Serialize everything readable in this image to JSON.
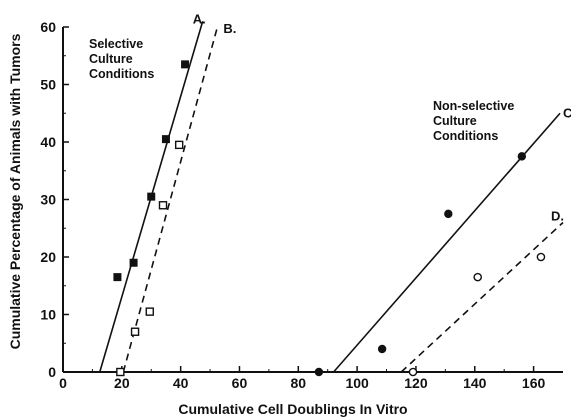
{
  "chart_data": {
    "type": "scatter",
    "xlabel": "Cumulative Cell Doublings In Vitro",
    "ylabel": "Cumulative Percentage of Animals with Tumors",
    "xlim": [
      0,
      170
    ],
    "ylim": [
      0,
      60
    ],
    "x_ticks": [
      0,
      20,
      40,
      60,
      80,
      100,
      120,
      140,
      160
    ],
    "y_ticks": [
      0,
      10,
      20,
      30,
      40,
      50,
      60
    ],
    "grid": false,
    "annotations": [
      {
        "id": "selective",
        "lines": [
          "Selective",
          "Culture",
          "Conditions"
        ]
      },
      {
        "id": "nonselective",
        "lines": [
          "Non-selective",
          "Culture",
          "Conditions"
        ]
      }
    ],
    "series": [
      {
        "name": "A.",
        "marker": "filled-square",
        "line_style": "solid",
        "points": [
          [
            18.5,
            16.5
          ],
          [
            24,
            19
          ],
          [
            30,
            30.5
          ],
          [
            35,
            40.5
          ],
          [
            41.5,
            53.5
          ]
        ],
        "fit": [
          [
            12.5,
            0
          ],
          [
            47.5,
            61
          ]
        ]
      },
      {
        "name": "B.",
        "marker": "open-square",
        "line_style": "dashed",
        "points": [
          [
            19.5,
            0
          ],
          [
            24.5,
            7
          ],
          [
            29.5,
            10.5
          ],
          [
            34,
            29
          ],
          [
            39.5,
            39.5
          ]
        ],
        "fit": [
          [
            20.5,
            0
          ],
          [
            52.5,
            60
          ]
        ]
      },
      {
        "name": "C",
        "marker": "filled-circle",
        "line_style": "solid",
        "points": [
          [
            87,
            0
          ],
          [
            108.5,
            4
          ],
          [
            131,
            27.5
          ],
          [
            156,
            37.5
          ]
        ],
        "fit": [
          [
            92,
            0
          ],
          [
            169,
            45
          ]
        ]
      },
      {
        "name": "D.",
        "marker": "open-circle",
        "line_style": "dashed",
        "points": [
          [
            119,
            0
          ],
          [
            141,
            16.5
          ],
          [
            162.5,
            20
          ]
        ],
        "fit": [
          [
            115,
            0
          ],
          [
            170,
            26
          ]
        ]
      }
    ]
  }
}
